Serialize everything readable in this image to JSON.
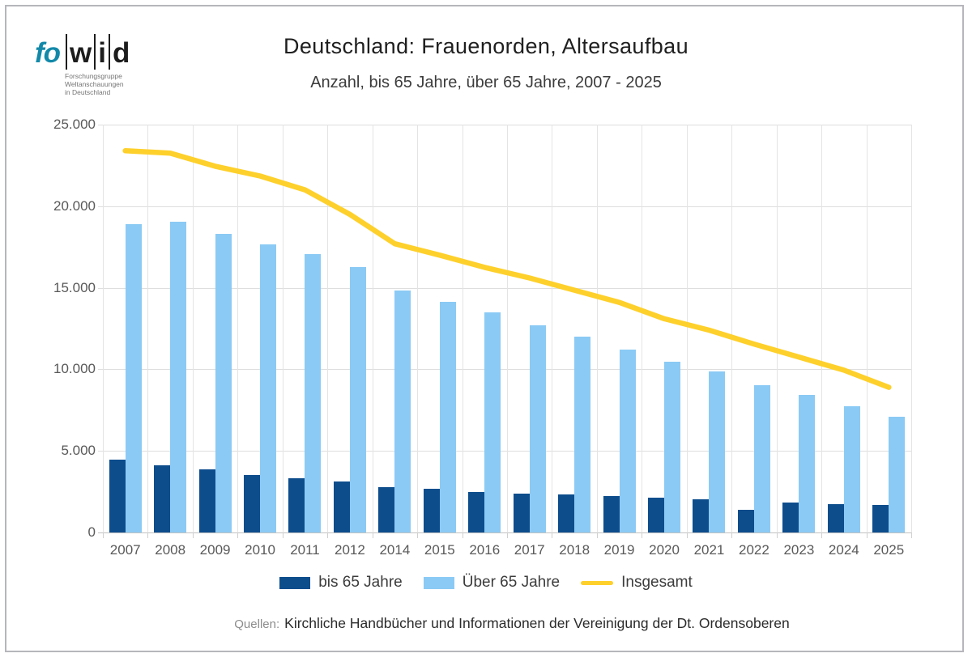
{
  "header": {
    "title": "Deutschland: Frauenorden, Altersaufbau",
    "subtitle": "Anzahl, bis 65 Jahre, über 65 Jahre, 2007 - 2025"
  },
  "logo": {
    "prefix": "fo",
    "letters": [
      "w",
      "i",
      "d"
    ],
    "sub_lines": [
      "Forschungsgruppe",
      "Weltanschauungen",
      "in Deutschland"
    ],
    "prefix_color": "#1389a9"
  },
  "chart_data": {
    "type": "bar",
    "categories": [
      "2007",
      "2008",
      "2009",
      "2010",
      "2011",
      "2012",
      "2014",
      "2015",
      "2016",
      "2017",
      "2018",
      "2019",
      "2020",
      "2021",
      "2022",
      "2023",
      "2024",
      "2025"
    ],
    "series": [
      {
        "name": "bis 65 Jahre",
        "type": "bar",
        "color": "#0D4D8C",
        "values": [
          4450,
          4120,
          3870,
          3510,
          3320,
          3130,
          2780,
          2660,
          2480,
          2400,
          2330,
          2230,
          2150,
          2050,
          1400,
          1850,
          1750,
          1670
        ]
      },
      {
        "name": "Über 65 Jahre",
        "type": "bar",
        "color": "#8BCAF5",
        "values": [
          18910,
          19050,
          18300,
          17670,
          17050,
          16270,
          14830,
          14120,
          13490,
          12680,
          12000,
          11220,
          10450,
          9860,
          9010,
          8420,
          7740,
          7110
        ]
      },
      {
        "name": "Insgesamt",
        "type": "line",
        "color": "#FED02B",
        "values": [
          23400,
          23250,
          22450,
          21850,
          21000,
          19500,
          17700,
          17000,
          16250,
          15600,
          14850,
          14100,
          13100,
          12400,
          11550,
          10750,
          9950,
          8900
        ]
      }
    ],
    "title": "Deutschland: Frauenorden, Altersaufbau",
    "xlabel": "",
    "ylabel": "",
    "ylim": [
      0,
      25000
    ],
    "y_ticks": [
      0,
      5000,
      10000,
      15000,
      20000,
      25000
    ],
    "y_tick_labels": [
      "0",
      "5.000",
      "10.000",
      "15.000",
      "20.000",
      "25.000"
    ],
    "grid": true,
    "legend_position": "bottom"
  },
  "source": {
    "label": "Quellen:",
    "text": "Kirchliche Handbücher und Informationen der Vereinigung der Dt. Ordensoberen"
  }
}
